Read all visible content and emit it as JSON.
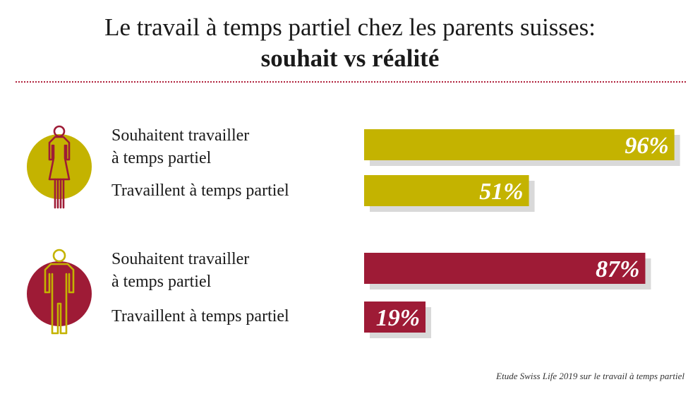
{
  "title": "Le travail à temps partiel chez les parents suisses:",
  "subtitle": "souhait vs réalité",
  "source": "Etude Swiss Life 2019 sur le travail à temps partiel",
  "colors": {
    "mothers": "#c4b300",
    "fathers": "#9e1b36",
    "shadow": "#d9d9d9",
    "divider": "#b0223c"
  },
  "groups": [
    {
      "icon": "woman-icon",
      "rows": [
        {
          "label_line1": "Souhaitent travailler",
          "label_line2": "à temps partiel",
          "value": 96,
          "display": "96%"
        },
        {
          "label_line1": "Travaillent à temps partiel",
          "label_line2": "",
          "value": 51,
          "display": "51%"
        }
      ]
    },
    {
      "icon": "man-icon",
      "rows": [
        {
          "label_line1": "Souhaitent travailler",
          "label_line2": "à temps partiel",
          "value": 87,
          "display": "87%"
        },
        {
          "label_line1": "Travaillent à temps partiel",
          "label_line2": "",
          "value": 19,
          "display": "19%"
        }
      ]
    }
  ],
  "chart_data": {
    "type": "bar",
    "orientation": "horizontal",
    "title": "Le travail à temps partiel chez les parents suisses: souhait vs réalité",
    "categories": [
      "Souhaitent travailler à temps partiel",
      "Travaillent à temps partiel"
    ],
    "series": [
      {
        "values": [
          96,
          51
        ]
      },
      {
        "values": [
          87,
          19
        ]
      }
    ],
    "unit": "%",
    "xlim": [
      0,
      100
    ],
    "grid": false,
    "legend": "none"
  }
}
